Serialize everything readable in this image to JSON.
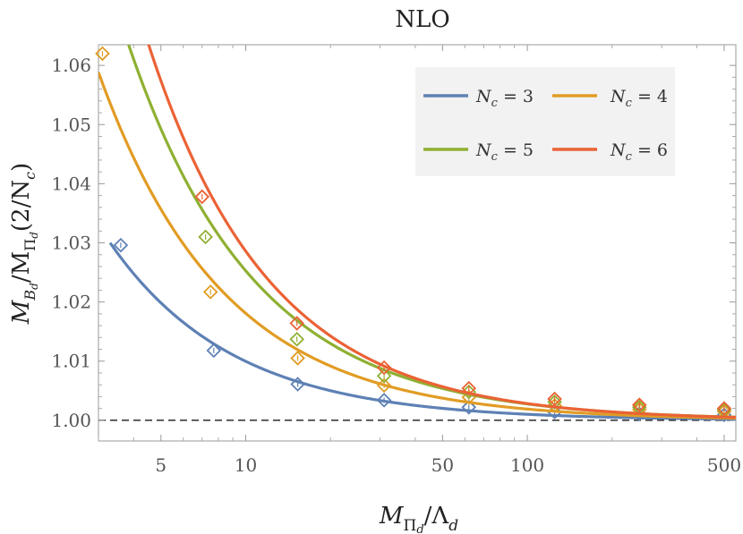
{
  "chart_data": {
    "type": "line",
    "title": "NLO",
    "xlabel": "M_{Π_d}/Λ_d",
    "xlabel_main": "M",
    "xlabel_sub": "Π",
    "xlabel_subsub": "d",
    "xlabel_rest": "/Λ",
    "xlabel_rest_sub": "d",
    "ylabel": "M_{B_d}/M_{Π_d}(2/N_c)",
    "ylabel_parts": {
      "m1": "M",
      "b": "B",
      "d1": "d",
      "slash": "/M",
      "pi": "Π",
      "d2": "d",
      "paren": "(2/N",
      "c": "c",
      "close": ")"
    },
    "xscale": "log",
    "xlim": [
      3.0,
      550.0
    ],
    "ylim": [
      0.9965,
      1.0635
    ],
    "xticks": [
      5,
      10,
      50,
      100,
      500
    ],
    "xtick_labels": [
      "5",
      "10",
      "50",
      "100",
      "500"
    ],
    "yticks": [
      1.0,
      1.01,
      1.02,
      1.03,
      1.04,
      1.05,
      1.06
    ],
    "ytick_labels": [
      "1.00",
      "1.01",
      "1.02",
      "1.03",
      "1.04",
      "1.05",
      "1.06"
    ],
    "reference_line": {
      "y": 1.0,
      "style": "dashed"
    },
    "legend_position": "top-right",
    "series": [
      {
        "name": "N_c = 3",
        "nc": "3",
        "color": "#5e81b5",
        "curve": {
          "a": 0.0983,
          "p": 0.994,
          "x_start": 3.3
        },
        "markers": {
          "x": [
            3.6,
            7.7,
            15.3,
            31.0,
            62.0,
            125.0,
            250.0,
            500.0
          ],
          "y": [
            1.0296,
            1.0118,
            1.0061,
            1.0034,
            1.0022,
            1.0014,
            1.0011,
            1.0009
          ]
        }
      },
      {
        "name": "N_c = 4",
        "nc": "4",
        "color": "#e19c24",
        "curve": {
          "a": 0.1727,
          "p": 0.98,
          "x_start": 3.0
        },
        "markers": {
          "x": [
            3.1,
            7.5,
            15.3,
            31.0,
            62.0,
            125.0,
            250.0,
            500.0
          ],
          "y": [
            1.062,
            1.0217,
            1.0105,
            1.0059,
            1.0039,
            1.0025,
            1.0018,
            1.0015
          ]
        }
      },
      {
        "name": "N_c = 5",
        "nc": "5",
        "color": "#8fb032",
        "curve": {
          "a": 0.2316,
          "p": 0.962,
          "x_start": 3.0
        },
        "markers": {
          "x": [
            7.2,
            15.2,
            31.0,
            62.0,
            125.0,
            250.0,
            500.0
          ],
          "y": [
            1.031,
            1.0137,
            1.0075,
            1.0048,
            1.0031,
            1.0022,
            1.0018
          ]
        }
      },
      {
        "name": "N_c = 6",
        "nc": "6",
        "color": "#eb6235",
        "curve": {
          "a": 0.2893,
          "p": 1.005,
          "x_start": 3.0
        },
        "markers": {
          "x": [
            7.0,
            15.2,
            31.0,
            62.0,
            125.0,
            250.0,
            500.0
          ],
          "y": [
            1.0378,
            1.0164,
            1.0089,
            1.0054,
            1.0036,
            1.0026,
            1.002
          ]
        }
      }
    ]
  }
}
